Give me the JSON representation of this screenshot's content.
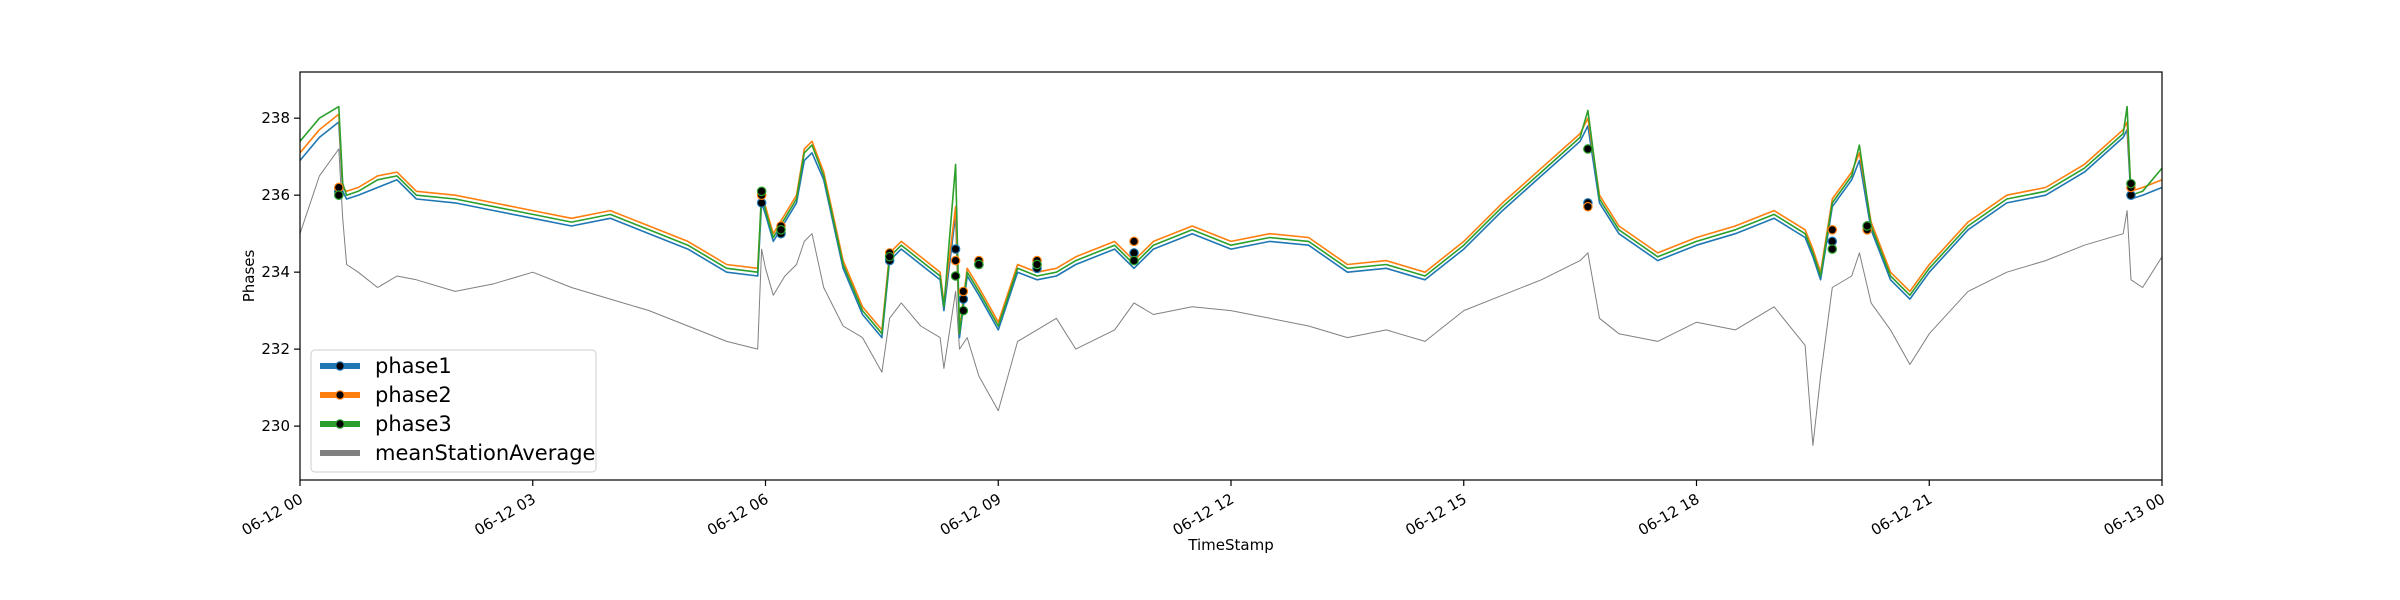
{
  "chart_data": {
    "type": "line",
    "xlabel": "TimeStamp",
    "ylabel": "Phases",
    "xlim": [
      "06-12 00",
      "06-13 00"
    ],
    "ylim": [
      228.6,
      239.2
    ],
    "x_tick_labels": [
      "06-12 00",
      "06-12 03",
      "06-12 06",
      "06-12 09",
      "06-12 12",
      "06-12 15",
      "06-12 18",
      "06-12 21",
      "06-13 00"
    ],
    "x_tick_hours": [
      0,
      3,
      6,
      9,
      12,
      15,
      18,
      21,
      24
    ],
    "y_ticks": [
      230,
      232,
      234,
      236,
      238
    ],
    "y_tick_labels": [
      "230",
      "232",
      "234",
      "236",
      "238"
    ],
    "grid": false,
    "legend_position": "lower-left",
    "x_hours": [
      0.0,
      0.25,
      0.5,
      0.55,
      0.6,
      0.75,
      1.0,
      1.25,
      1.5,
      2.0,
      2.5,
      3.0,
      3.5,
      4.0,
      4.5,
      5.0,
      5.5,
      5.9,
      5.95,
      6.0,
      6.1,
      6.25,
      6.4,
      6.5,
      6.6,
      6.75,
      7.0,
      7.25,
      7.5,
      7.6,
      7.75,
      8.0,
      8.25,
      8.3,
      8.45,
      8.5,
      8.6,
      8.75,
      9.0,
      9.25,
      9.5,
      9.75,
      10.0,
      10.5,
      10.75,
      11.0,
      11.5,
      12.0,
      12.5,
      13.0,
      13.5,
      14.0,
      14.5,
      15.0,
      15.5,
      16.0,
      16.5,
      16.6,
      16.75,
      17.0,
      17.5,
      18.0,
      18.5,
      19.0,
      19.4,
      19.5,
      19.6,
      19.75,
      20.0,
      20.1,
      20.25,
      20.5,
      20.75,
      21.0,
      21.5,
      22.0,
      22.5,
      23.0,
      23.5,
      23.55,
      23.6,
      23.75,
      24.0
    ],
    "series": [
      {
        "name": "phase1",
        "color": "#1f77b4",
        "values": [
          236.9,
          237.5,
          237.9,
          236.1,
          235.9,
          236.0,
          236.2,
          236.4,
          235.9,
          235.8,
          235.6,
          235.4,
          235.2,
          235.4,
          235.0,
          234.6,
          234.0,
          233.9,
          235.8,
          235.5,
          234.8,
          235.3,
          235.8,
          236.9,
          237.1,
          236.4,
          234.1,
          232.9,
          232.3,
          234.3,
          234.6,
          234.2,
          233.8,
          233.0,
          235.5,
          232.3,
          233.9,
          233.4,
          232.5,
          234.0,
          233.8,
          233.9,
          234.2,
          234.6,
          234.1,
          234.6,
          235.0,
          234.6,
          234.8,
          234.7,
          234.0,
          234.1,
          233.8,
          234.6,
          235.6,
          236.5,
          237.4,
          237.8,
          235.8,
          235.0,
          234.3,
          234.7,
          235.0,
          235.4,
          234.9,
          234.4,
          233.8,
          235.7,
          236.4,
          236.9,
          235.1,
          233.8,
          233.3,
          234.0,
          235.1,
          235.8,
          236.0,
          236.6,
          237.5,
          237.7,
          235.9,
          236.0,
          236.2
        ]
      },
      {
        "name": "phase2",
        "color": "#ff7f0e",
        "values": [
          237.1,
          237.7,
          238.1,
          236.2,
          236.1,
          236.2,
          236.5,
          236.6,
          236.1,
          236.0,
          235.8,
          235.6,
          235.4,
          235.6,
          235.2,
          234.8,
          234.2,
          234.1,
          236.0,
          235.7,
          235.0,
          235.5,
          236.0,
          237.2,
          237.4,
          236.6,
          234.3,
          233.1,
          232.5,
          234.5,
          234.8,
          234.4,
          234.0,
          233.2,
          235.7,
          232.5,
          234.1,
          233.6,
          232.7,
          234.2,
          234.0,
          234.1,
          234.4,
          234.8,
          234.3,
          234.8,
          235.2,
          234.8,
          235.0,
          234.9,
          234.2,
          234.3,
          234.0,
          234.8,
          235.8,
          236.7,
          237.6,
          238.0,
          236.0,
          235.2,
          234.5,
          234.9,
          235.2,
          235.6,
          235.1,
          234.6,
          234.0,
          235.9,
          236.6,
          237.1,
          235.3,
          234.0,
          233.5,
          234.2,
          235.3,
          236.0,
          236.2,
          236.8,
          237.7,
          237.9,
          236.1,
          236.2,
          236.4
        ]
      },
      {
        "name": "phase3",
        "color": "#2ca02c",
        "values": [
          237.4,
          238.0,
          238.3,
          236.3,
          236.0,
          236.1,
          236.4,
          236.5,
          236.0,
          235.9,
          235.7,
          235.5,
          235.3,
          235.5,
          235.1,
          234.7,
          234.1,
          234.0,
          236.1,
          235.6,
          234.9,
          235.4,
          235.9,
          237.1,
          237.3,
          236.5,
          234.2,
          233.0,
          232.4,
          234.4,
          234.7,
          234.3,
          233.9,
          233.1,
          236.8,
          232.4,
          234.0,
          233.5,
          232.6,
          234.1,
          233.9,
          234.0,
          234.3,
          234.7,
          234.2,
          234.7,
          235.1,
          234.7,
          234.9,
          234.8,
          234.1,
          234.2,
          233.9,
          234.7,
          235.7,
          236.6,
          237.5,
          238.2,
          235.9,
          235.1,
          234.4,
          234.8,
          235.1,
          235.5,
          235.0,
          234.5,
          233.9,
          235.8,
          236.5,
          237.3,
          235.2,
          233.9,
          233.4,
          234.1,
          235.2,
          235.9,
          236.1,
          236.7,
          237.6,
          238.3,
          236.0,
          236.1,
          236.7
        ]
      },
      {
        "name": "meanStationAverage",
        "color": "#808080",
        "values": [
          235.0,
          236.5,
          237.2,
          235.4,
          234.2,
          234.0,
          233.6,
          233.9,
          233.8,
          233.5,
          233.7,
          234.0,
          233.6,
          233.3,
          233.0,
          232.6,
          232.2,
          232.0,
          234.6,
          234.1,
          233.4,
          233.9,
          234.2,
          234.8,
          235.0,
          233.6,
          232.6,
          232.3,
          231.4,
          232.8,
          233.2,
          232.6,
          232.3,
          231.5,
          233.5,
          232.0,
          232.3,
          231.3,
          230.4,
          232.2,
          232.5,
          232.8,
          232.0,
          232.5,
          233.2,
          232.9,
          233.1,
          233.0,
          232.8,
          232.6,
          232.3,
          232.5,
          232.2,
          233.0,
          233.4,
          233.8,
          234.3,
          234.5,
          232.8,
          232.4,
          232.2,
          232.7,
          232.5,
          233.1,
          232.1,
          229.5,
          231.3,
          233.6,
          233.9,
          234.5,
          233.2,
          232.5,
          231.6,
          232.4,
          233.5,
          234.0,
          234.3,
          234.7,
          235.0,
          235.6,
          233.8,
          233.6,
          234.4
        ]
      }
    ],
    "markers": [
      {
        "x": 0.5,
        "y": [
          236.1,
          236.2,
          236.0
        ]
      },
      {
        "x": 5.95,
        "y": [
          235.8,
          236.0,
          236.1
        ]
      },
      {
        "x": 6.2,
        "y": [
          235.0,
          235.2,
          235.1
        ]
      },
      {
        "x": 7.6,
        "y": [
          234.3,
          234.5,
          234.4
        ]
      },
      {
        "x": 8.45,
        "y": [
          234.6,
          234.3,
          233.9
        ]
      },
      {
        "x": 8.55,
        "y": [
          233.3,
          233.5,
          233.0
        ]
      },
      {
        "x": 8.75,
        "y": [
          234.2,
          234.3,
          234.2
        ]
      },
      {
        "x": 9.5,
        "y": [
          234.1,
          234.3,
          234.2
        ]
      },
      {
        "x": 10.75,
        "y": [
          234.5,
          234.8,
          234.3
        ]
      },
      {
        "x": 16.6,
        "y": [
          235.8,
          235.7,
          237.2
        ]
      },
      {
        "x": 19.75,
        "y": [
          234.8,
          235.1,
          234.6
        ]
      },
      {
        "x": 20.2,
        "y": [
          235.2,
          235.1,
          235.2
        ]
      },
      {
        "x": 23.6,
        "y": [
          236.0,
          236.2,
          236.3
        ]
      }
    ]
  }
}
